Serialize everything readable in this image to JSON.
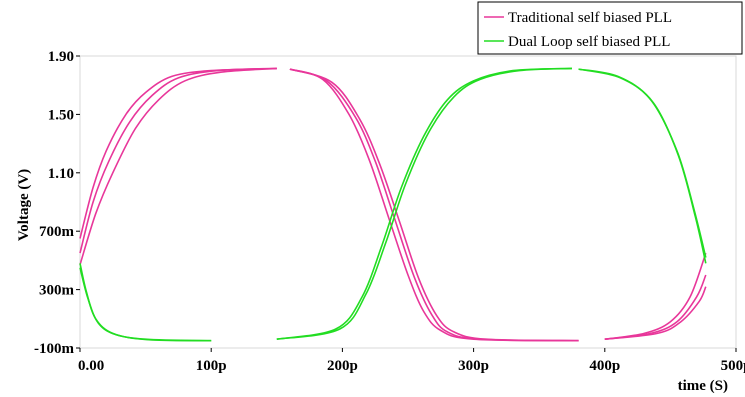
{
  "chart_data": {
    "type": "line",
    "title": "",
    "xlabel": "time (S)",
    "ylabel": "Voltage (V)",
    "xlim": [
      0,
      500
    ],
    "ylim": [
      -0.1,
      1.9
    ],
    "x_unit": "ps",
    "x_ticks": [
      {
        "value": 0,
        "label": "0.00"
      },
      {
        "value": 100,
        "label": "100p"
      },
      {
        "value": 200,
        "label": "200p"
      },
      {
        "value": 300,
        "label": "300p"
      },
      {
        "value": 400,
        "label": "400p"
      },
      {
        "value": 500,
        "label": "500p"
      }
    ],
    "y_ticks": [
      {
        "value": 1.9,
        "label": "1.90"
      },
      {
        "value": 1.5,
        "label": "1.50"
      },
      {
        "value": 1.1,
        "label": "1.10"
      },
      {
        "value": 0.7,
        "label": "700m"
      },
      {
        "value": 0.3,
        "label": "300m"
      },
      {
        "value": -0.1,
        "label": "-100m"
      }
    ],
    "grid": false,
    "legend_position": "top-right",
    "series": [
      {
        "name": "Traditional self biased PLL",
        "color": "#e8379a",
        "traces": [
          {
            "rising": [
              [
                0,
                0.65
              ],
              [
                10,
                1.0
              ],
              [
                20,
                1.25
              ],
              [
                35,
                1.5
              ],
              [
                50,
                1.65
              ],
              [
                70,
                1.76
              ],
              [
                100,
                1.8
              ],
              [
                150,
                1.815
              ]
            ],
            "falling": [
              [
                160,
                1.81
              ],
              [
                185,
                1.74
              ],
              [
                205,
                1.5
              ],
              [
                220,
                1.2
              ],
              [
                235,
                0.8
              ],
              [
                250,
                0.4
              ],
              [
                262,
                0.15
              ],
              [
                275,
                0.02
              ],
              [
                300,
                -0.04
              ],
              [
                380,
                -0.05
              ]
            ],
            "rising_end": [
              [
                400,
                -0.04
              ],
              [
                430,
                0.0
              ],
              [
                450,
                0.08
              ],
              [
                465,
                0.25
              ],
              [
                477,
                0.55
              ]
            ]
          },
          {
            "rising": [
              [
                0,
                0.55
              ],
              [
                10,
                0.9
              ],
              [
                22,
                1.18
              ],
              [
                38,
                1.45
              ],
              [
                55,
                1.63
              ],
              [
                75,
                1.75
              ],
              [
                105,
                1.8
              ],
              [
                150,
                1.815
              ]
            ],
            "falling": [
              [
                160,
                1.81
              ],
              [
                188,
                1.73
              ],
              [
                210,
                1.48
              ],
              [
                225,
                1.18
              ],
              [
                240,
                0.78
              ],
              [
                255,
                0.38
              ],
              [
                268,
                0.13
              ],
              [
                280,
                0.01
              ],
              [
                305,
                -0.04
              ],
              [
                380,
                -0.05
              ]
            ],
            "rising_end": [
              [
                400,
                -0.04
              ],
              [
                435,
                0.0
              ],
              [
                455,
                0.08
              ],
              [
                470,
                0.25
              ],
              [
                477,
                0.4
              ]
            ]
          },
          {
            "rising": [
              [
                0,
                0.47
              ],
              [
                12,
                0.82
              ],
              [
                25,
                1.1
              ],
              [
                42,
                1.4
              ],
              [
                60,
                1.6
              ],
              [
                80,
                1.73
              ],
              [
                108,
                1.79
              ],
              [
                150,
                1.815
              ]
            ],
            "falling": [
              [
                160,
                1.81
              ],
              [
                192,
                1.72
              ],
              [
                213,
                1.47
              ],
              [
                228,
                1.17
              ],
              [
                243,
                0.78
              ],
              [
                258,
                0.38
              ],
              [
                272,
                0.12
              ],
              [
                285,
                0.01
              ],
              [
                310,
                -0.04
              ],
              [
                380,
                -0.05
              ]
            ],
            "rising_end": [
              [
                400,
                -0.04
              ],
              [
                440,
                0.0
              ],
              [
                458,
                0.08
              ],
              [
                472,
                0.22
              ],
              [
                477,
                0.32
              ]
            ]
          }
        ]
      },
      {
        "name": "Dual Loop self biased PLL",
        "color": "#22dd22",
        "traces": [
          {
            "falling_start": [
              [
                0,
                0.48
              ],
              [
                5,
                0.28
              ],
              [
                12,
                0.1
              ],
              [
                25,
                0.0
              ],
              [
                50,
                -0.04
              ],
              [
                100,
                -0.05
              ]
            ],
            "rising": [
              [
                150,
                -0.04
              ],
              [
                195,
                0.03
              ],
              [
                215,
                0.25
              ],
              [
                230,
                0.6
              ],
              [
                245,
                1.0
              ],
              [
                262,
                1.35
              ],
              [
                280,
                1.6
              ],
              [
                300,
                1.73
              ],
              [
                330,
                1.8
              ],
              [
                375,
                1.815
              ]
            ],
            "falling": [
              [
                380,
                1.81
              ],
              [
                410,
                1.76
              ],
              [
                435,
                1.6
              ],
              [
                455,
                1.25
              ],
              [
                468,
                0.85
              ],
              [
                477,
                0.52
              ]
            ]
          },
          {
            "falling_start": [
              [
                0,
                0.45
              ],
              [
                6,
                0.24
              ],
              [
                14,
                0.07
              ],
              [
                28,
                -0.01
              ],
              [
                55,
                -0.045
              ],
              [
                100,
                -0.05
              ]
            ],
            "rising": [
              [
                150,
                -0.04
              ],
              [
                198,
                0.03
              ],
              [
                218,
                0.27
              ],
              [
                233,
                0.62
              ],
              [
                248,
                1.02
              ],
              [
                266,
                1.38
              ],
              [
                285,
                1.62
              ],
              [
                305,
                1.74
              ],
              [
                335,
                1.8
              ],
              [
                375,
                1.815
              ]
            ],
            "falling": [
              [
                380,
                1.81
              ],
              [
                412,
                1.75
              ],
              [
                437,
                1.58
              ],
              [
                456,
                1.22
              ],
              [
                469,
                0.8
              ],
              [
                477,
                0.48
              ]
            ]
          }
        ]
      }
    ]
  }
}
